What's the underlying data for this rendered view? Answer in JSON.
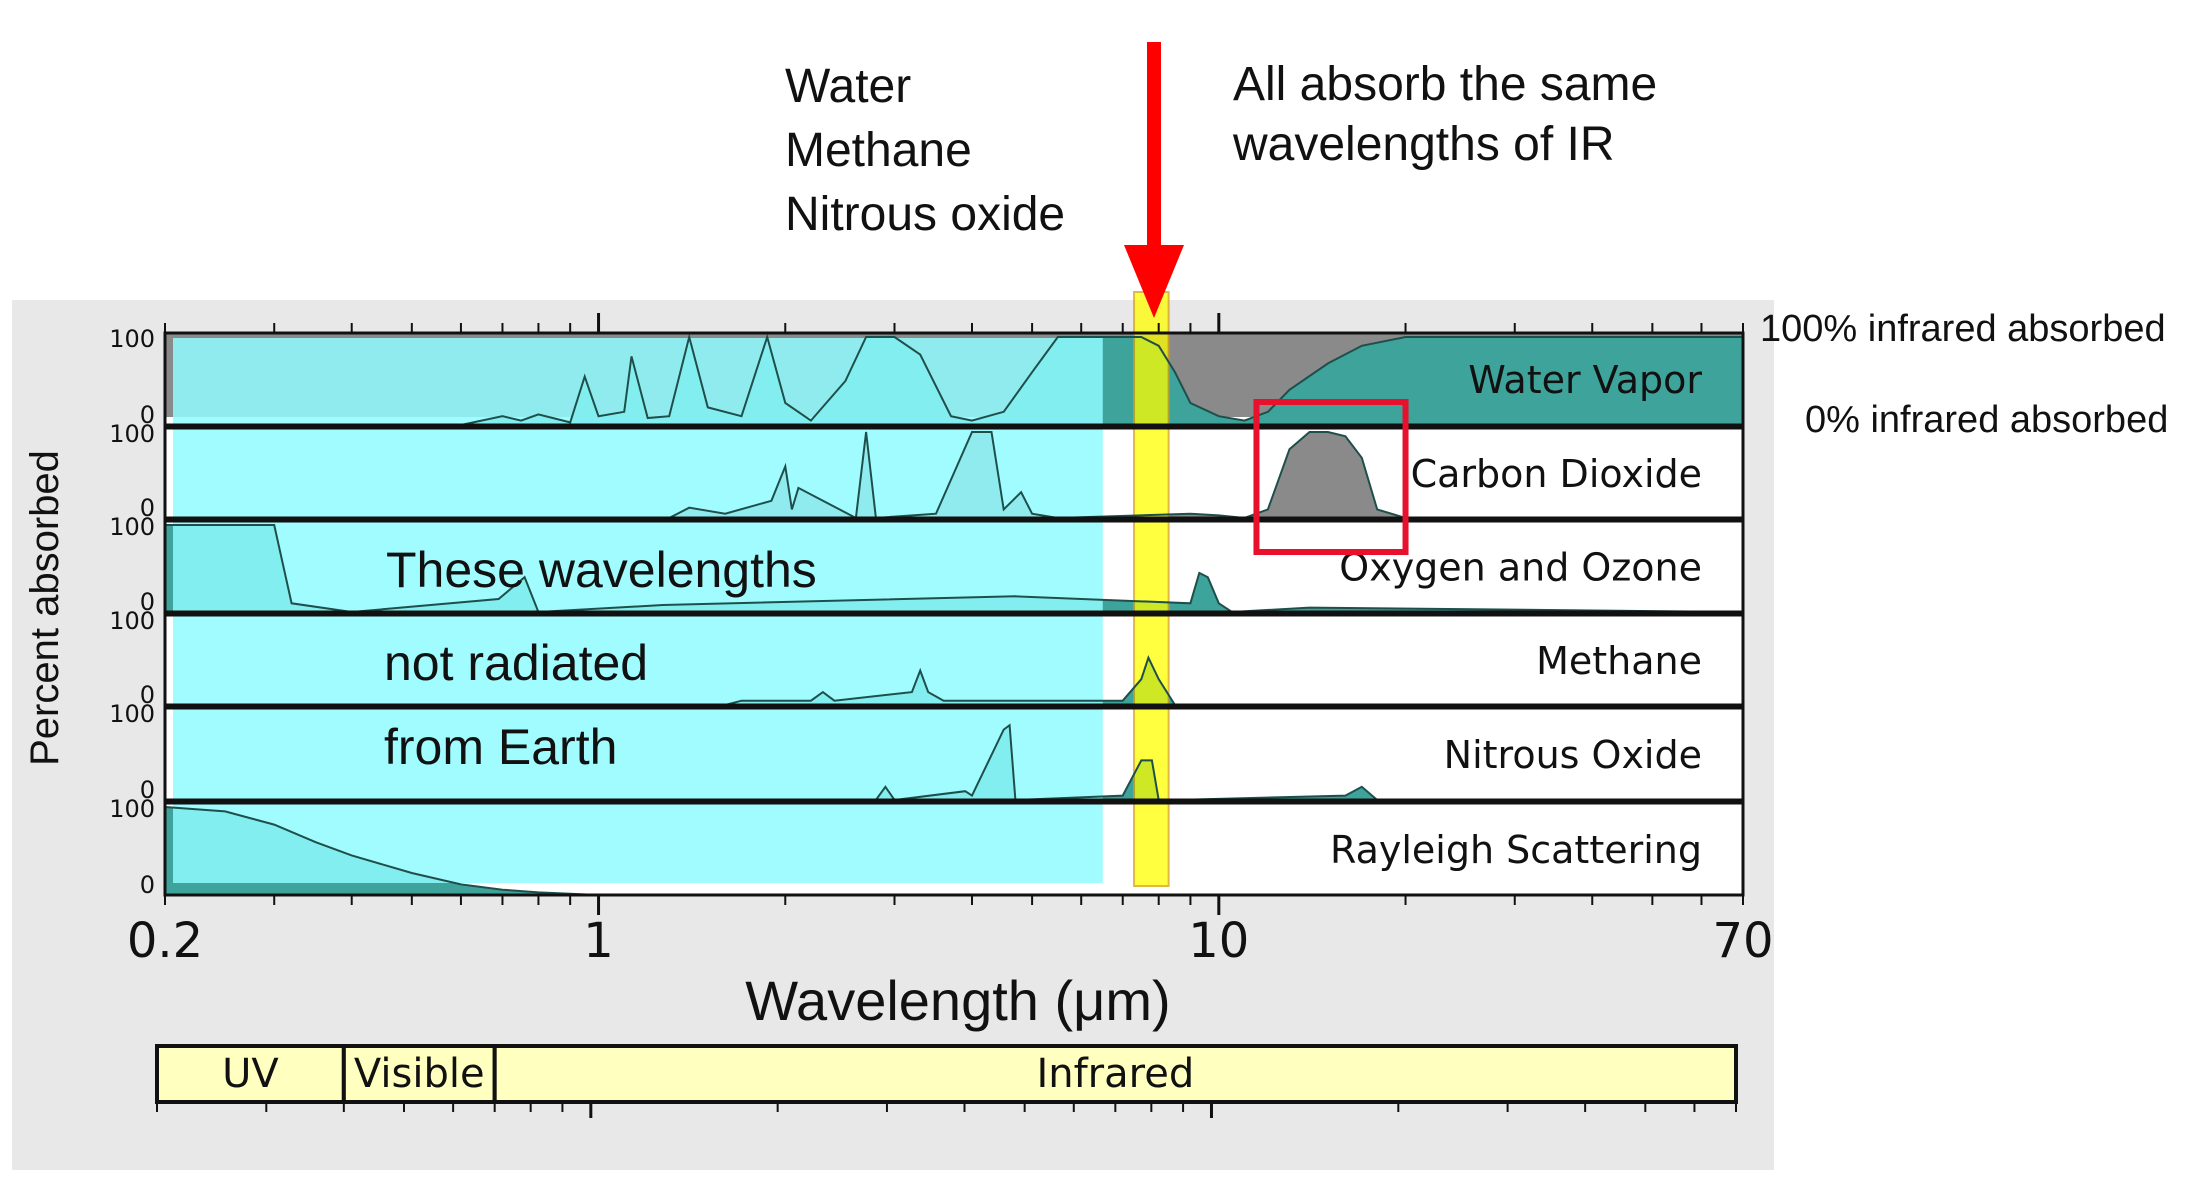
{
  "annotations": {
    "gas_list": [
      "Water",
      "Methane",
      "Nitrous oxide"
    ],
    "same_ir": [
      "All absorb the same",
      "wavelengths of IR"
    ],
    "not_radiated": [
      "These wavelengths",
      "not radiated",
      "from Earth"
    ],
    "pct_100": "100% infrared absorbed",
    "pct_0": "0% infrared absorbed"
  },
  "colors": {
    "background_panel": "#e8e8e8",
    "cyan_overlay": "#8ffcff",
    "fill_teal": "#3ea39a",
    "fill_gray": "#8a8a8a",
    "water_band_top": "#8a8a8a",
    "yellow_window": "#ffff00",
    "red_arrow": "#ff0000",
    "red_box": "#e8112d",
    "spectrum_bar": "#ffffc0"
  },
  "chart_data": {
    "type": "area",
    "title": "",
    "xlabel": "Wavelength (μm)",
    "ylabel": "Percent absorbed",
    "xscale": "log",
    "xlim": [
      0.2,
      70
    ],
    "xtick_labels": [
      "0.2",
      "1",
      "10",
      "70"
    ],
    "ytick_labels": [
      "100",
      "0"
    ],
    "legend": "none (series labelled at right of each strip)",
    "series": [
      {
        "name": "Water Vapor",
        "x": [
          0.2,
          0.6,
          0.7,
          0.75,
          0.8,
          0.9,
          0.95,
          1.0,
          1.1,
          1.13,
          1.2,
          1.3,
          1.4,
          1.5,
          1.7,
          1.87,
          2.0,
          2.2,
          2.5,
          2.7,
          3.0,
          3.3,
          3.7,
          4.0,
          4.5,
          5.0,
          5.5,
          6.0,
          6.5,
          7.0,
          7.5,
          8.0,
          8.5,
          9.0,
          10.0,
          11.0,
          12.0,
          13.0,
          15.0,
          17.0,
          20.0,
          70.0
        ],
        "y": [
          0,
          0,
          10,
          5,
          12,
          3,
          55,
          10,
          15,
          78,
          8,
          10,
          100,
          20,
          10,
          100,
          25,
          5,
          50,
          100,
          100,
          80,
          10,
          5,
          15,
          60,
          100,
          100,
          100,
          100,
          100,
          90,
          60,
          25,
          10,
          5,
          15,
          40,
          70,
          90,
          100,
          100
        ]
      },
      {
        "name": "Carbon Dioxide",
        "x": [
          0.2,
          1.3,
          1.4,
          1.6,
          1.9,
          2.0,
          2.05,
          2.1,
          2.6,
          2.7,
          2.8,
          3.5,
          4.0,
          4.3,
          4.5,
          4.8,
          5.0,
          5.5,
          9.0,
          10.0,
          11.0,
          12.0,
          13.0,
          14.0,
          15.0,
          16.0,
          17.0,
          18.0,
          20.0,
          70.0
        ],
        "y": [
          0,
          0,
          12,
          5,
          20,
          60,
          10,
          35,
          0,
          100,
          0,
          5,
          100,
          100,
          10,
          30,
          5,
          0,
          5,
          3,
          0,
          10,
          80,
          100,
          100,
          95,
          70,
          10,
          0,
          0
        ]
      },
      {
        "name": "Oxygen and Ozone",
        "x": [
          0.2,
          0.28,
          0.3,
          0.32,
          0.4,
          0.69,
          0.76,
          0.8,
          1.27,
          4.7,
          9.0,
          9.3,
          9.6,
          10.0,
          10.5,
          14.0,
          70.0
        ],
        "y": [
          100,
          100,
          100,
          10,
          0,
          15,
          40,
          0,
          8,
          18,
          10,
          45,
          40,
          10,
          0,
          5,
          0
        ]
      },
      {
        "name": "Methane",
        "x": [
          0.2,
          1.6,
          1.7,
          2.2,
          2.3,
          2.4,
          3.2,
          3.3,
          3.4,
          3.6,
          7.0,
          7.5,
          7.7,
          8.0,
          8.5,
          70.0
        ],
        "y": [
          0,
          0,
          5,
          5,
          15,
          5,
          15,
          40,
          15,
          5,
          5,
          30,
          55,
          30,
          0,
          0
        ]
      },
      {
        "name": "Nitrous Oxide",
        "x": [
          0.2,
          2.8,
          2.9,
          3.0,
          3.9,
          4.0,
          4.5,
          4.6,
          4.7,
          7.0,
          7.5,
          7.8,
          8.0,
          8.5,
          16.0,
          17.0,
          18.0,
          70.0
        ],
        "y": [
          0,
          0,
          15,
          0,
          10,
          5,
          80,
          85,
          0,
          5,
          45,
          45,
          0,
          0,
          5,
          15,
          0,
          0
        ]
      },
      {
        "name": "Rayleigh Scattering",
        "x": [
          0.2,
          0.25,
          0.3,
          0.35,
          0.4,
          0.5,
          0.6,
          0.7,
          0.8,
          1.0,
          70.0
        ],
        "y": [
          100,
          95,
          80,
          60,
          45,
          25,
          12,
          6,
          3,
          0,
          0
        ]
      }
    ],
    "highlight_ranges": [
      {
        "x": [
          0.2,
          6.5
        ],
        "meaning": "These wavelengths not radiated from Earth"
      },
      {
        "x": [
          7.3,
          8.3
        ],
        "meaning": "All absorb the same wavelengths of IR"
      }
    ],
    "spectrum_bands": [
      {
        "name": "UV",
        "x": [
          0.2,
          0.4
        ]
      },
      {
        "name": "Visible",
        "x": [
          0.4,
          0.7
        ]
      },
      {
        "name": "Infrared",
        "x": [
          0.7,
          70
        ]
      }
    ]
  }
}
